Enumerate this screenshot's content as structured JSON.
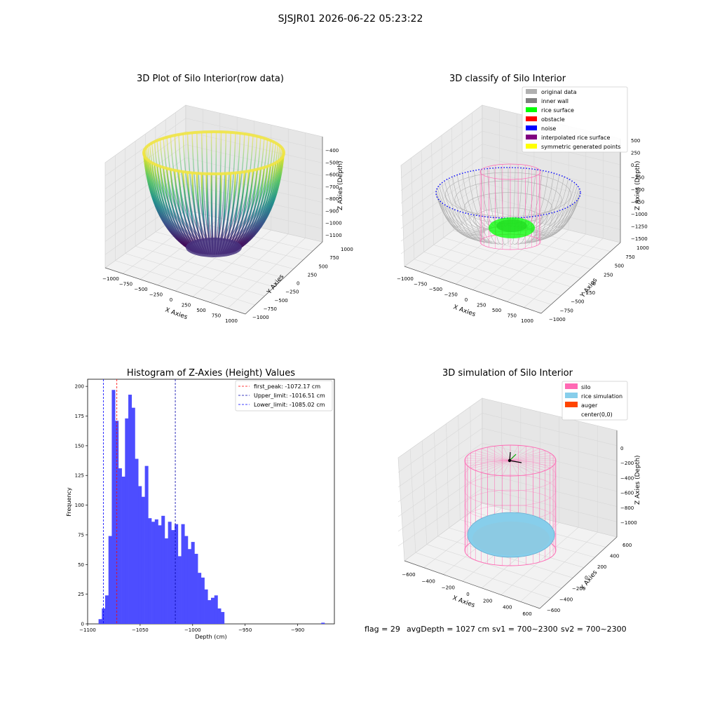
{
  "figure": {
    "suptitle": "SJSJR01 2026-06-22 05:23:22",
    "footer": {
      "flag": "flag = 29",
      "avg_depth": "avgDepth = 1027 cm",
      "sv1": "sv1 = 700~2300",
      "sv2": "sv2 = 700~2300"
    }
  },
  "colors": {
    "hist_bar": "#4d4dff",
    "first_peak": "#ff0000",
    "upper_limit": "#0000aa",
    "lower_limit": "#0000ff",
    "silo": "#ff69b4",
    "rice_sim": "#87ceeb",
    "auger": "#ff4500",
    "rice_surface": "#00ff00",
    "inner_wall": "#808080",
    "original": "#b0b0b0",
    "noise": "#0000ff",
    "obstacle": "#ff0000",
    "interpolated": "#800080",
    "symmetric": "#ffff00"
  },
  "chart_data": [
    {
      "id": "raw",
      "type": "scatter",
      "title": "3D Plot of Silo Interior(row data)",
      "xlabel": "X Axies",
      "ylabel": "Y Axies",
      "zlabel": "Z Axies (Depth)",
      "x_ticks": [
        "−1000",
        "−750",
        "−500",
        "−250",
        "0",
        "250",
        "500",
        "750",
        "1000"
      ],
      "y_ticks": [
        "−1000",
        "−750",
        "−500",
        "−250",
        "0",
        "250",
        "500",
        "750",
        "1000"
      ],
      "z_ticks": [
        "−1100",
        "−1000",
        "−900",
        "−800",
        "−700",
        "−600",
        "−500",
        "−400"
      ],
      "colormap": "viridis",
      "grid": true
    },
    {
      "id": "classify",
      "type": "scatter",
      "title": "3D classify of Silo Interior",
      "xlabel": "X Axies",
      "ylabel": "Y Axies",
      "zlabel": "Z Axies (Depth)",
      "x_ticks": [
        "−1000",
        "−750",
        "−500",
        "−250",
        "0",
        "250",
        "500",
        "750",
        "1000"
      ],
      "y_ticks": [
        "−1000",
        "−750",
        "−500",
        "−250",
        "0",
        "250",
        "500",
        "750",
        "1000"
      ],
      "z_ticks": [
        "−1500",
        "−1250",
        "−1000",
        "−750",
        "−500",
        "−250",
        "0",
        "250",
        "500"
      ],
      "legend": [
        {
          "label": "original data",
          "color": "#b0b0b0"
        },
        {
          "label": "inner wall",
          "color": "#808080"
        },
        {
          "label": "rice surface",
          "color": "#00ff00"
        },
        {
          "label": "obstacle",
          "color": "#ff0000"
        },
        {
          "label": "noise",
          "color": "#0000ff"
        },
        {
          "label": "interpolated rice surface",
          "color": "#800080"
        },
        {
          "label": "symmetric generated points",
          "color": "#ffff00"
        }
      ],
      "legend_position": "upper-right",
      "grid": true
    },
    {
      "id": "hist",
      "type": "bar",
      "title": "Histogram of Z-Axies (Height) Values",
      "xlabel": "Depth (cm)",
      "ylabel": "Frequency",
      "xlim": [
        -1100,
        -865
      ],
      "ylim": [
        0,
        206
      ],
      "x_ticks": [
        -1100,
        -1050,
        -1000,
        -950,
        -900
      ],
      "x_tick_labels": [
        "−1100",
        "−1050",
        "−1000",
        "−950",
        "−900"
      ],
      "y_ticks": [
        0,
        25,
        50,
        75,
        100,
        125,
        150,
        175,
        200
      ],
      "bin_width": 3.15,
      "bin_starts": [
        -1089.6,
        -1086.45,
        -1083.3,
        -1080.15,
        -1077.0,
        -1073.85,
        -1070.7,
        -1067.55,
        -1064.4,
        -1061.25,
        -1058.1,
        -1054.95,
        -1051.8,
        -1048.65,
        -1045.5,
        -1042.35,
        -1039.2,
        -1036.05,
        -1032.9,
        -1029.75,
        -1026.6,
        -1023.45,
        -1020.3,
        -1017.15,
        -1014.0,
        -1010.85,
        -1007.7,
        -1004.55,
        -1001.4,
        -998.25,
        -995.1,
        -991.95,
        -988.8,
        -985.65,
        -982.5,
        -979.35,
        -976.2,
        -973.05,
        -969.9,
        -966.75,
        -963.6,
        -960.45,
        -957.3,
        -954.15,
        -951.0,
        -947.85,
        -944.7,
        -941.55,
        -938.4,
        -935.25,
        -932.1,
        -928.95,
        -877.5
      ],
      "counts": [
        4,
        13,
        24,
        74,
        197,
        171,
        131,
        124,
        173,
        193,
        182,
        139,
        116,
        107,
        133,
        89,
        86,
        88,
        83,
        91,
        72,
        86,
        79,
        84,
        57,
        84,
        74,
        63,
        69,
        59,
        43,
        39,
        29,
        20,
        22,
        24,
        13,
        10,
        0,
        0,
        0,
        0,
        0,
        0,
        0,
        0,
        0,
        0,
        0,
        0,
        0,
        0,
        1
      ],
      "vlines": [
        {
          "label": "first_peak: -1072.17 cm",
          "x": -1072.17,
          "color": "#ff0000"
        },
        {
          "label": "Upper_limit: -1016.51 cm",
          "x": -1016.51,
          "color": "#0000aa"
        },
        {
          "label": "Lower_limit: -1085.02 cm",
          "x": -1085.02,
          "color": "#0000ff"
        }
      ],
      "legend_position": "upper-right"
    },
    {
      "id": "sim",
      "type": "scatter",
      "title": "3D simulation of Silo Interior",
      "xlabel": "X Axies",
      "ylabel": "Y Axies",
      "zlabel": "Z Axies (Depth)",
      "x_ticks": [
        "−600",
        "−400",
        "−200",
        "0",
        "200",
        "400",
        "600"
      ],
      "y_ticks": [
        "−600",
        "−400",
        "−200",
        "0",
        "200",
        "400",
        "600"
      ],
      "z_ticks": [
        "−1000",
        "−800",
        "−600",
        "−400",
        "−200",
        "0"
      ],
      "legend": [
        {
          "label": "silo",
          "color": "#ff69b4"
        },
        {
          "label": "rice simulation",
          "color": "#87ceeb"
        },
        {
          "label": "auger",
          "color": "#ff4500"
        },
        {
          "label": "center(0,0)",
          "color": ""
        }
      ],
      "legend_position": "upper-right",
      "grid": true
    }
  ]
}
